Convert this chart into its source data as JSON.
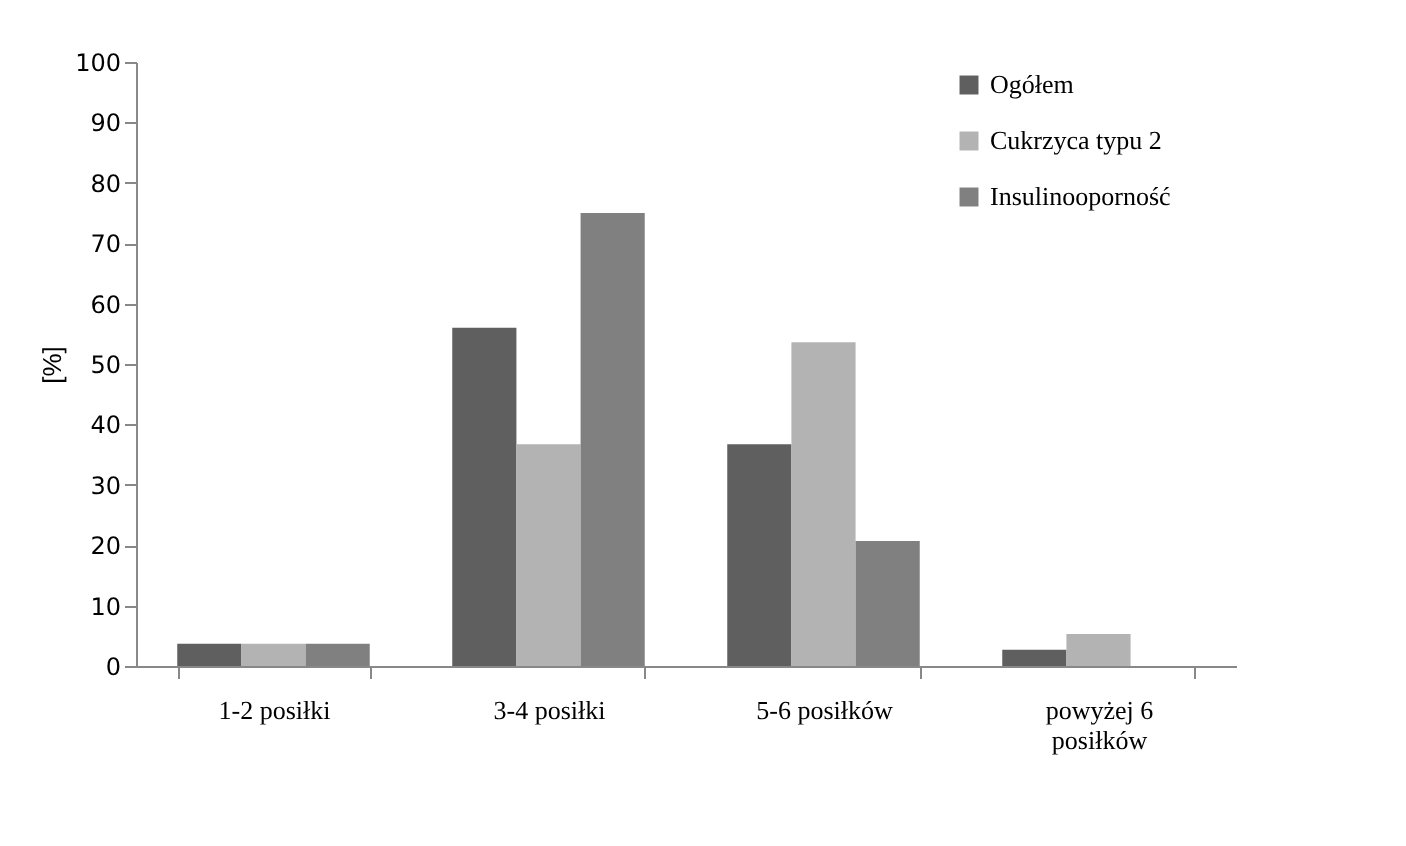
{
  "chart_data": {
    "type": "bar",
    "ylabel": "[%]",
    "categories": [
      "1-2 posiłki",
      "3-4 posiłki",
      "5-6 posiłków",
      "powyżej 6 posiłków"
    ],
    "series": [
      {
        "name": "Ogółem",
        "color": "#5f5f5f",
        "values": [
          3.7,
          56,
          36.7,
          2.7
        ]
      },
      {
        "name": "Cukrzyca typu 2",
        "color": "#b3b3b3",
        "values": [
          3.7,
          36.7,
          53.6,
          5.3
        ]
      },
      {
        "name": "Insulinooporność",
        "color": "#808080",
        "values": [
          3.7,
          75,
          20.7,
          0
        ]
      }
    ],
    "ylim": [
      0,
      100
    ],
    "yticks": [
      0,
      10,
      20,
      30,
      40,
      50,
      60,
      70,
      80,
      90,
      100
    ],
    "grid": false,
    "legend": "top right"
  }
}
